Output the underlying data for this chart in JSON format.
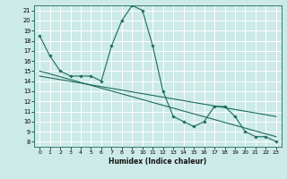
{
  "xlabel": "Humidex (Indice chaleur)",
  "background_color": "#cceae7",
  "grid_color": "#ffffff",
  "line_color": "#1a6b5e",
  "xlim": [
    -0.5,
    23.5
  ],
  "ylim": [
    7.5,
    21.5
  ],
  "xticks": [
    0,
    1,
    2,
    3,
    4,
    5,
    6,
    7,
    8,
    9,
    10,
    11,
    12,
    13,
    14,
    15,
    16,
    17,
    18,
    19,
    20,
    21,
    22,
    23
  ],
  "yticks": [
    8,
    9,
    10,
    11,
    12,
    13,
    14,
    15,
    16,
    17,
    18,
    19,
    20,
    21
  ],
  "series1_x": [
    0,
    1,
    2,
    3,
    4,
    5,
    6,
    7,
    8,
    9,
    10,
    11,
    12,
    13,
    14,
    15,
    16,
    17,
    18,
    19,
    20,
    21,
    22,
    23
  ],
  "series1_y": [
    18.5,
    16.5,
    15.0,
    14.5,
    14.5,
    14.5,
    14.0,
    17.5,
    20.0,
    21.5,
    21.0,
    17.5,
    13.0,
    10.5,
    10.0,
    9.5,
    10.0,
    11.5,
    11.5,
    10.5,
    9.0,
    8.5,
    8.5,
    8.0
  ],
  "trend1_x": [
    0,
    23
  ],
  "trend1_y": [
    15.0,
    8.5
  ],
  "trend2_x": [
    0,
    23
  ],
  "trend2_y": [
    14.5,
    10.5
  ]
}
